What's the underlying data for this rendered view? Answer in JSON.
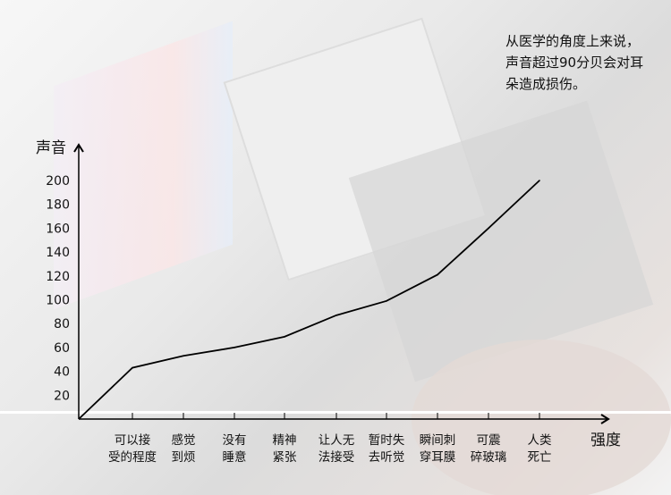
{
  "annotation": [
    "从医学的角度上来说，",
    "声音超过90分贝会对耳",
    "朵造成损伤。"
  ],
  "chart_data": {
    "type": "line",
    "ylabel": "声音",
    "xlabel": "强度",
    "yticks": [
      20,
      40,
      60,
      80,
      100,
      120,
      140,
      160,
      180,
      200
    ],
    "ylim": [
      0,
      210
    ],
    "categories": [
      [
        "可以接",
        "受的程度"
      ],
      [
        "感觉",
        "到烦"
      ],
      [
        "没有",
        "睡意"
      ],
      [
        "精神",
        "紧张"
      ],
      [
        "让人无",
        "法接受"
      ],
      [
        "暂时失",
        "去听觉"
      ],
      [
        "瞬间刺",
        "穿耳膜"
      ],
      [
        "可震",
        "碎玻璃"
      ],
      [
        "人类",
        "死亡"
      ]
    ],
    "start_value": 0,
    "values": [
      43,
      53,
      60,
      69,
      87,
      99,
      121,
      160,
      200
    ],
    "line_color": "#000000",
    "grid": false
  }
}
